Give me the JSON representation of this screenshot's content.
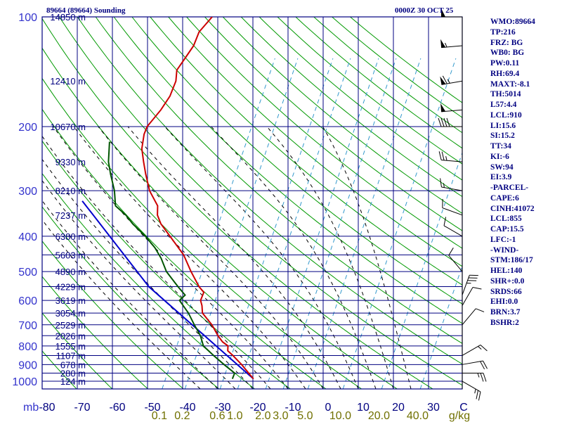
{
  "header": {
    "station_title": "89664 (89664) Sounding",
    "valid_time": "0000Z 30 OCT 25"
  },
  "indices": [
    "WMO:89664",
    "TP:216",
    "FRZ: BG",
    "WB0: BG",
    "PW:0.11",
    "RH:69.4",
    "MAXT:-8.1",
    "TH:5014",
    "L57:4.4",
    "LCL:910",
    "LI:15.6",
    "SI:15.2",
    "TT:34",
    "KI:-6",
    "SW:94",
    "EI:3.9",
    "-PARCEL-",
    "CAPE:6",
    "CINH:41072",
    "LCL:855",
    "CAP:15.5",
    "LFC:-1",
    "-WIND-",
    "STM:186/17",
    "HEL:140",
    "SHR+:0.0",
    "SRDS:66",
    "EHI:0.0",
    "BRN:3.7",
    "BSHR:2"
  ],
  "colors": {
    "grid": "#000080",
    "dry_adiabat": "#009900",
    "moist_adiabat": "#000000",
    "mixing_ratio": "#3399cc",
    "temperature": "#cc0000",
    "dewpoint": "#005500",
    "parcel": "#0000cc",
    "pressure_labels": "#3333cc",
    "temp_labels": "#000080",
    "mixing_labels": "#707000",
    "height_labels": "#000080",
    "wind_barbs": "#000000"
  },
  "chart_data": {
    "type": "skew-T log-P sounding",
    "x_axis_unit_label": "C",
    "y_axis_unit_label": "mb",
    "temperature_ticks": [
      -80,
      -70,
      -60,
      -50,
      -40,
      -30,
      -20,
      -10,
      0,
      10,
      20,
      30
    ],
    "pressure_ticks": [
      100,
      200,
      300,
      400,
      500,
      600,
      700,
      800,
      900,
      1000
    ],
    "mixing_ratio_lines": [
      {
        "label": "0.1",
        "temp_at_1000": -37.5
      },
      {
        "label": "0.2",
        "temp_at_1000": -31
      },
      {
        "label": "0.6",
        "temp_at_1000": -21
      },
      {
        "label": "1.0",
        "temp_at_1000": -16
      },
      {
        "label": "2.0",
        "temp_at_1000": -8
      },
      {
        "label": "3.0",
        "temp_at_1000": -3
      },
      {
        "label": "5.0",
        "temp_at_1000": 4
      },
      {
        "label": "10.0",
        "temp_at_1000": 14
      },
      {
        "label": "20.0",
        "temp_at_1000": 25
      },
      {
        "label": "40.0",
        "temp_at_1000": 36
      },
      {
        "label": "g/kg",
        "temp_at_1000": null
      }
    ],
    "height_labels": [
      {
        "p": 100,
        "text": "14850 m"
      },
      {
        "p": 150,
        "text": "12410 m"
      },
      {
        "p": 200,
        "text": "10670 m"
      },
      {
        "p": 250,
        "text": "9330 m"
      },
      {
        "p": 300,
        "text": "8210 m"
      },
      {
        "p": 350,
        "text": "7237 m"
      },
      {
        "p": 400,
        "text": "6380 m"
      },
      {
        "p": 450,
        "text": "5603 m"
      },
      {
        "p": 500,
        "text": "4890 m"
      },
      {
        "p": 550,
        "text": "4229 m"
      },
      {
        "p": 600,
        "text": "3619 m"
      },
      {
        "p": 650,
        "text": "3054 m"
      },
      {
        "p": 700,
        "text": "2529 m"
      },
      {
        "p": 750,
        "text": "2026 m"
      },
      {
        "p": 800,
        "text": "1555 m"
      },
      {
        "p": 850,
        "text": "1107 m"
      },
      {
        "p": 900,
        "text": "678 m"
      },
      {
        "p": 950,
        "text": "280 m"
      },
      {
        "p": 1000,
        "text": "124 m"
      }
    ],
    "temperature_profile": [
      [
        985,
        -11
      ],
      [
        950,
        -13
      ],
      [
        900,
        -16
      ],
      [
        850,
        -19.5
      ],
      [
        825,
        -21.5
      ],
      [
        800,
        -22
      ],
      [
        780,
        -24
      ],
      [
        750,
        -26
      ],
      [
        700,
        -29
      ],
      [
        650,
        -33
      ],
      [
        620,
        -34
      ],
      [
        600,
        -35
      ],
      [
        570,
        -35
      ],
      [
        550,
        -37
      ],
      [
        500,
        -41
      ],
      [
        450,
        -45
      ],
      [
        400,
        -51
      ],
      [
        370,
        -55
      ],
      [
        350,
        -57
      ],
      [
        330,
        -58
      ],
      [
        300,
        -62
      ],
      [
        270,
        -65
      ],
      [
        250,
        -67
      ],
      [
        230,
        -69
      ],
      [
        210,
        -70
      ],
      [
        200,
        -70
      ],
      [
        180,
        -68
      ],
      [
        165,
        -67
      ],
      [
        150,
        -67
      ],
      [
        140,
        -68
      ],
      [
        130,
        -67
      ],
      [
        120,
        -66
      ],
      [
        110,
        -66
      ],
      [
        100,
        -64
      ]
    ],
    "dewpoint_profile": [
      [
        985,
        -17
      ],
      [
        950,
        -17
      ],
      [
        900,
        -21
      ],
      [
        850,
        -25
      ],
      [
        800,
        -29
      ],
      [
        750,
        -31
      ],
      [
        700,
        -34
      ],
      [
        650,
        -37
      ],
      [
        600,
        -41
      ],
      [
        580,
        -40
      ],
      [
        550,
        -43
      ],
      [
        500,
        -48
      ],
      [
        460,
        -51
      ],
      [
        430,
        -54
      ],
      [
        400,
        -58
      ],
      [
        370,
        -63
      ],
      [
        350,
        -66
      ],
      [
        330,
        -70
      ],
      [
        300,
        -72
      ],
      [
        270,
        -75
      ],
      [
        250,
        -77
      ],
      [
        220,
        -79
      ]
    ],
    "parcel_path": [
      [
        985,
        -11
      ],
      [
        550,
        -51.3
      ],
      [
        320,
        -80
      ]
    ],
    "winds": [
      {
        "p": 100,
        "dir": 270,
        "spd": 50
      },
      {
        "p": 120,
        "dir": 265,
        "spd": 55
      },
      {
        "p": 150,
        "dir": 260,
        "spd": 65
      },
      {
        "p": 180,
        "dir": 265,
        "spd": 50
      },
      {
        "p": 200,
        "dir": 270,
        "spd": 40
      },
      {
        "p": 250,
        "dir": 275,
        "spd": 25
      },
      {
        "p": 300,
        "dir": 280,
        "spd": 15
      },
      {
        "p": 350,
        "dir": 290,
        "spd": 10
      },
      {
        "p": 400,
        "dir": 300,
        "spd": 10
      },
      {
        "p": 500,
        "dir": 320,
        "spd": 10
      },
      {
        "p": 580,
        "dir": 20,
        "spd": 35
      },
      {
        "p": 620,
        "dir": 30,
        "spd": 10
      },
      {
        "p": 700,
        "dir": 40,
        "spd": 10
      },
      {
        "p": 850,
        "dir": 60,
        "spd": 15
      },
      {
        "p": 900,
        "dir": 80,
        "spd": 20
      },
      {
        "p": 950,
        "dir": 90,
        "spd": 25
      },
      {
        "p": 1000,
        "dir": 120,
        "spd": 25
      }
    ]
  }
}
